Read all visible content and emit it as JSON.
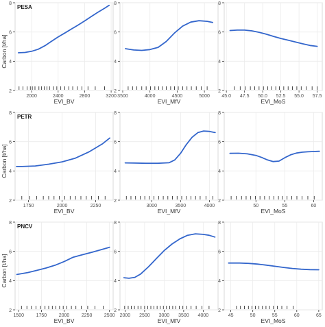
{
  "figure": {
    "y_label": "Carbon [t/ha]"
  },
  "chart_data": [
    {
      "type": "line",
      "row": 0,
      "col": 0,
      "panel_label": "PESA",
      "xlabel": "EVI_BV",
      "xlim": [
        1750,
        3230
      ],
      "ylim": [
        2,
        8
      ],
      "xticks": [
        2000,
        2400,
        2800,
        3200
      ],
      "yticks": [
        2,
        4,
        6,
        8
      ],
      "rug": [
        1810,
        1870,
        1930,
        1980,
        2010,
        2050,
        2110,
        2150,
        2190,
        2230,
        2270,
        2330,
        2380,
        2440,
        2500,
        2560,
        2620,
        2690,
        2760,
        2850,
        2960,
        3100
      ],
      "series": [
        {
          "color": "#3366cc",
          "x": [
            1800,
            1900,
            2000,
            2100,
            2200,
            2300,
            2400,
            2500,
            2600,
            2700,
            2800,
            2900,
            3000,
            3100,
            3170
          ],
          "y": [
            4.58,
            4.6,
            4.68,
            4.82,
            5.06,
            5.36,
            5.66,
            5.93,
            6.2,
            6.47,
            6.76,
            7.06,
            7.35,
            7.62,
            7.82
          ]
        }
      ]
    },
    {
      "type": "line",
      "row": 0,
      "col": 1,
      "xlabel": "EVI_MfV",
      "xlim": [
        3450,
        5250
      ],
      "ylim": [
        2,
        8
      ],
      "xticks": [
        3500,
        4000,
        4500,
        5000
      ],
      "yticks": [
        2,
        4,
        6,
        8
      ],
      "rug": [
        3600,
        3680,
        3760,
        3850,
        3930,
        4010,
        4090,
        4160,
        4230,
        4300,
        4380,
        4450,
        4520,
        4600,
        4680,
        4760,
        4850,
        4940,
        5050
      ],
      "series": [
        {
          "color": "#3366cc",
          "x": [
            3550,
            3700,
            3850,
            4000,
            4150,
            4300,
            4450,
            4600,
            4750,
            4900,
            5050,
            5150
          ],
          "y": [
            4.86,
            4.77,
            4.74,
            4.8,
            4.95,
            5.35,
            5.93,
            6.4,
            6.68,
            6.77,
            6.73,
            6.65
          ]
        }
      ]
    },
    {
      "type": "line",
      "row": 0,
      "col": 2,
      "xlabel": "EVI_MoS",
      "xlim": [
        44.7,
        58.2
      ],
      "ylim": [
        2,
        8
      ],
      "xticks": [
        45.0,
        47.5,
        50.0,
        52.5,
        55.0,
        57.5
      ],
      "xtick_labels": [
        "45.0",
        "47.5",
        "50.0",
        "52.5",
        "55.0",
        "57.5"
      ],
      "yticks": [
        2,
        4,
        6,
        8
      ],
      "rug": [
        46.1,
        46.9,
        47.6,
        48.3,
        48.9,
        49.5,
        50.1,
        50.7,
        51.2,
        51.8,
        52.3,
        52.9,
        53.5,
        54.1,
        54.7,
        55.3,
        56.0,
        56.8,
        57.5
      ],
      "series": [
        {
          "color": "#3366cc",
          "x": [
            45.5,
            46.5,
            47.5,
            48.5,
            49.5,
            50.5,
            51.5,
            52.5,
            53.5,
            54.5,
            55.5,
            56.5,
            57.5
          ],
          "y": [
            6.1,
            6.13,
            6.13,
            6.08,
            5.98,
            5.85,
            5.7,
            5.56,
            5.44,
            5.32,
            5.19,
            5.08,
            5.02
          ]
        }
      ]
    },
    {
      "type": "line",
      "row": 1,
      "col": 0,
      "panel_label": "PETR",
      "xlabel": "EVI_BV",
      "xlim": [
        1650,
        2380
      ],
      "ylim": [
        2,
        8
      ],
      "xticks": [
        1750,
        2000,
        2250
      ],
      "yticks": [
        2,
        4,
        6,
        8
      ],
      "rug": [
        1700,
        1760,
        1810,
        1860,
        1900,
        1940,
        1980,
        2020,
        2060,
        2100,
        2140,
        2180,
        2220,
        2270,
        2320
      ],
      "series": [
        {
          "color": "#3366cc",
          "x": [
            1660,
            1700,
            1800,
            1900,
            2000,
            2100,
            2200,
            2300,
            2355
          ],
          "y": [
            4.3,
            4.3,
            4.34,
            4.46,
            4.62,
            4.88,
            5.3,
            5.85,
            6.25
          ]
        }
      ]
    },
    {
      "type": "line",
      "row": 1,
      "col": 1,
      "xlabel": "EVI_MfV",
      "xlim": [
        2450,
        4150
      ],
      "ylim": [
        2,
        8
      ],
      "xticks": [
        3000,
        3500,
        4000
      ],
      "yticks": [
        2,
        4,
        6,
        8
      ],
      "rug": [
        2560,
        2640,
        2720,
        2800,
        2880,
        2960,
        3040,
        3120,
        3200,
        3280,
        3360,
        3440,
        3520,
        3600,
        3680,
        3760,
        3840,
        3940,
        4060
      ],
      "series": [
        {
          "color": "#3366cc",
          "x": [
            2540,
            2700,
            2900,
            3100,
            3300,
            3400,
            3500,
            3600,
            3700,
            3800,
            3900,
            4000,
            4100
          ],
          "y": [
            4.55,
            4.54,
            4.52,
            4.52,
            4.56,
            4.75,
            5.2,
            5.8,
            6.3,
            6.62,
            6.73,
            6.7,
            6.62
          ]
        }
      ]
    },
    {
      "type": "line",
      "row": 1,
      "col": 2,
      "xlabel": "EVI_MoS",
      "xlim": [
        44.5,
        61.5
      ],
      "ylim": [
        2,
        8
      ],
      "xticks": [
        50,
        55,
        60
      ],
      "yticks": [
        2,
        4,
        6,
        8
      ],
      "rug": [
        45.7,
        46.6,
        47.5,
        48.3,
        49.1,
        49.9,
        50.7,
        51.5,
        52.3,
        53.1,
        53.9,
        54.6,
        55.4,
        56.2,
        57.1,
        58.0,
        59.0,
        60.1
      ],
      "series": [
        {
          "color": "#3366cc",
          "x": [
            45.5,
            47,
            48.5,
            50,
            51,
            52,
            53,
            54,
            55,
            56,
            57,
            58,
            59,
            60,
            61
          ],
          "y": [
            5.2,
            5.21,
            5.17,
            5.06,
            4.92,
            4.75,
            4.64,
            4.67,
            4.9,
            5.1,
            5.22,
            5.28,
            5.31,
            5.33,
            5.34
          ]
        }
      ]
    },
    {
      "type": "line",
      "row": 2,
      "col": 0,
      "panel_label": "PNCV",
      "xlabel": "EVI_BV",
      "xlim": [
        1460,
        2540
      ],
      "ylim": [
        2,
        8
      ],
      "xticks": [
        1500,
        1750,
        2000,
        2250,
        2500
      ],
      "yticks": [
        2,
        4,
        6,
        8
      ],
      "rug": [
        1530,
        1590,
        1640,
        1690,
        1740,
        1790,
        1830,
        1870,
        1910,
        1950,
        1990,
        2030,
        2080,
        2130,
        2190,
        2260,
        2340,
        2430
      ],
      "series": [
        {
          "color": "#3366cc",
          "x": [
            1480,
            1600,
            1700,
            1800,
            1900,
            2000,
            2100,
            2200,
            2300,
            2400,
            2500
          ],
          "y": [
            4.42,
            4.55,
            4.7,
            4.86,
            5.05,
            5.3,
            5.6,
            5.77,
            5.93,
            6.1,
            6.28
          ]
        }
      ]
    },
    {
      "type": "line",
      "row": 2,
      "col": 1,
      "xlabel": "EVI_MfV",
      "xlim": [
        1870,
        4380
      ],
      "ylim": [
        2,
        8
      ],
      "xticks": [
        2000,
        2500,
        3000,
        3500,
        4000
      ],
      "yticks": [
        2,
        4,
        6,
        8
      ],
      "rug": [
        1990,
        2080,
        2160,
        2240,
        2330,
        2410,
        2500,
        2580,
        2660,
        2740,
        2820,
        2900,
        2980,
        3060,
        3140,
        3220,
        3300,
        3390,
        3480,
        3580,
        3690,
        3820,
        3970,
        4150
      ],
      "series": [
        {
          "color": "#3366cc",
          "x": [
            1970,
            2100,
            2250,
            2400,
            2600,
            2800,
            3000,
            3200,
            3400,
            3600,
            3800,
            4000,
            4150,
            4300
          ],
          "y": [
            4.2,
            4.16,
            4.22,
            4.45,
            4.95,
            5.5,
            6.05,
            6.5,
            6.85,
            7.1,
            7.2,
            7.16,
            7.1,
            6.98
          ]
        }
      ]
    },
    {
      "type": "line",
      "row": 2,
      "col": 2,
      "xlabel": "EVI_MoS",
      "xlim": [
        43.5,
        65.8
      ],
      "ylim": [
        2,
        8
      ],
      "xticks": [
        45,
        50,
        55,
        60,
        65
      ],
      "yticks": [
        2,
        4,
        6,
        8
      ],
      "rug": [
        46.3,
        47.2,
        48.1,
        49.0,
        49.8,
        50.6,
        51.4,
        52.2,
        53.0,
        53.8,
        54.7,
        55.6,
        56.6,
        57.8,
        59.2
      ],
      "series": [
        {
          "color": "#3366cc",
          "x": [
            44.5,
            47,
            49,
            51,
            53,
            55,
            57,
            59,
            61,
            63,
            65
          ],
          "y": [
            5.2,
            5.2,
            5.18,
            5.13,
            5.06,
            4.98,
            4.9,
            4.83,
            4.78,
            4.75,
            4.74
          ]
        }
      ]
    }
  ]
}
